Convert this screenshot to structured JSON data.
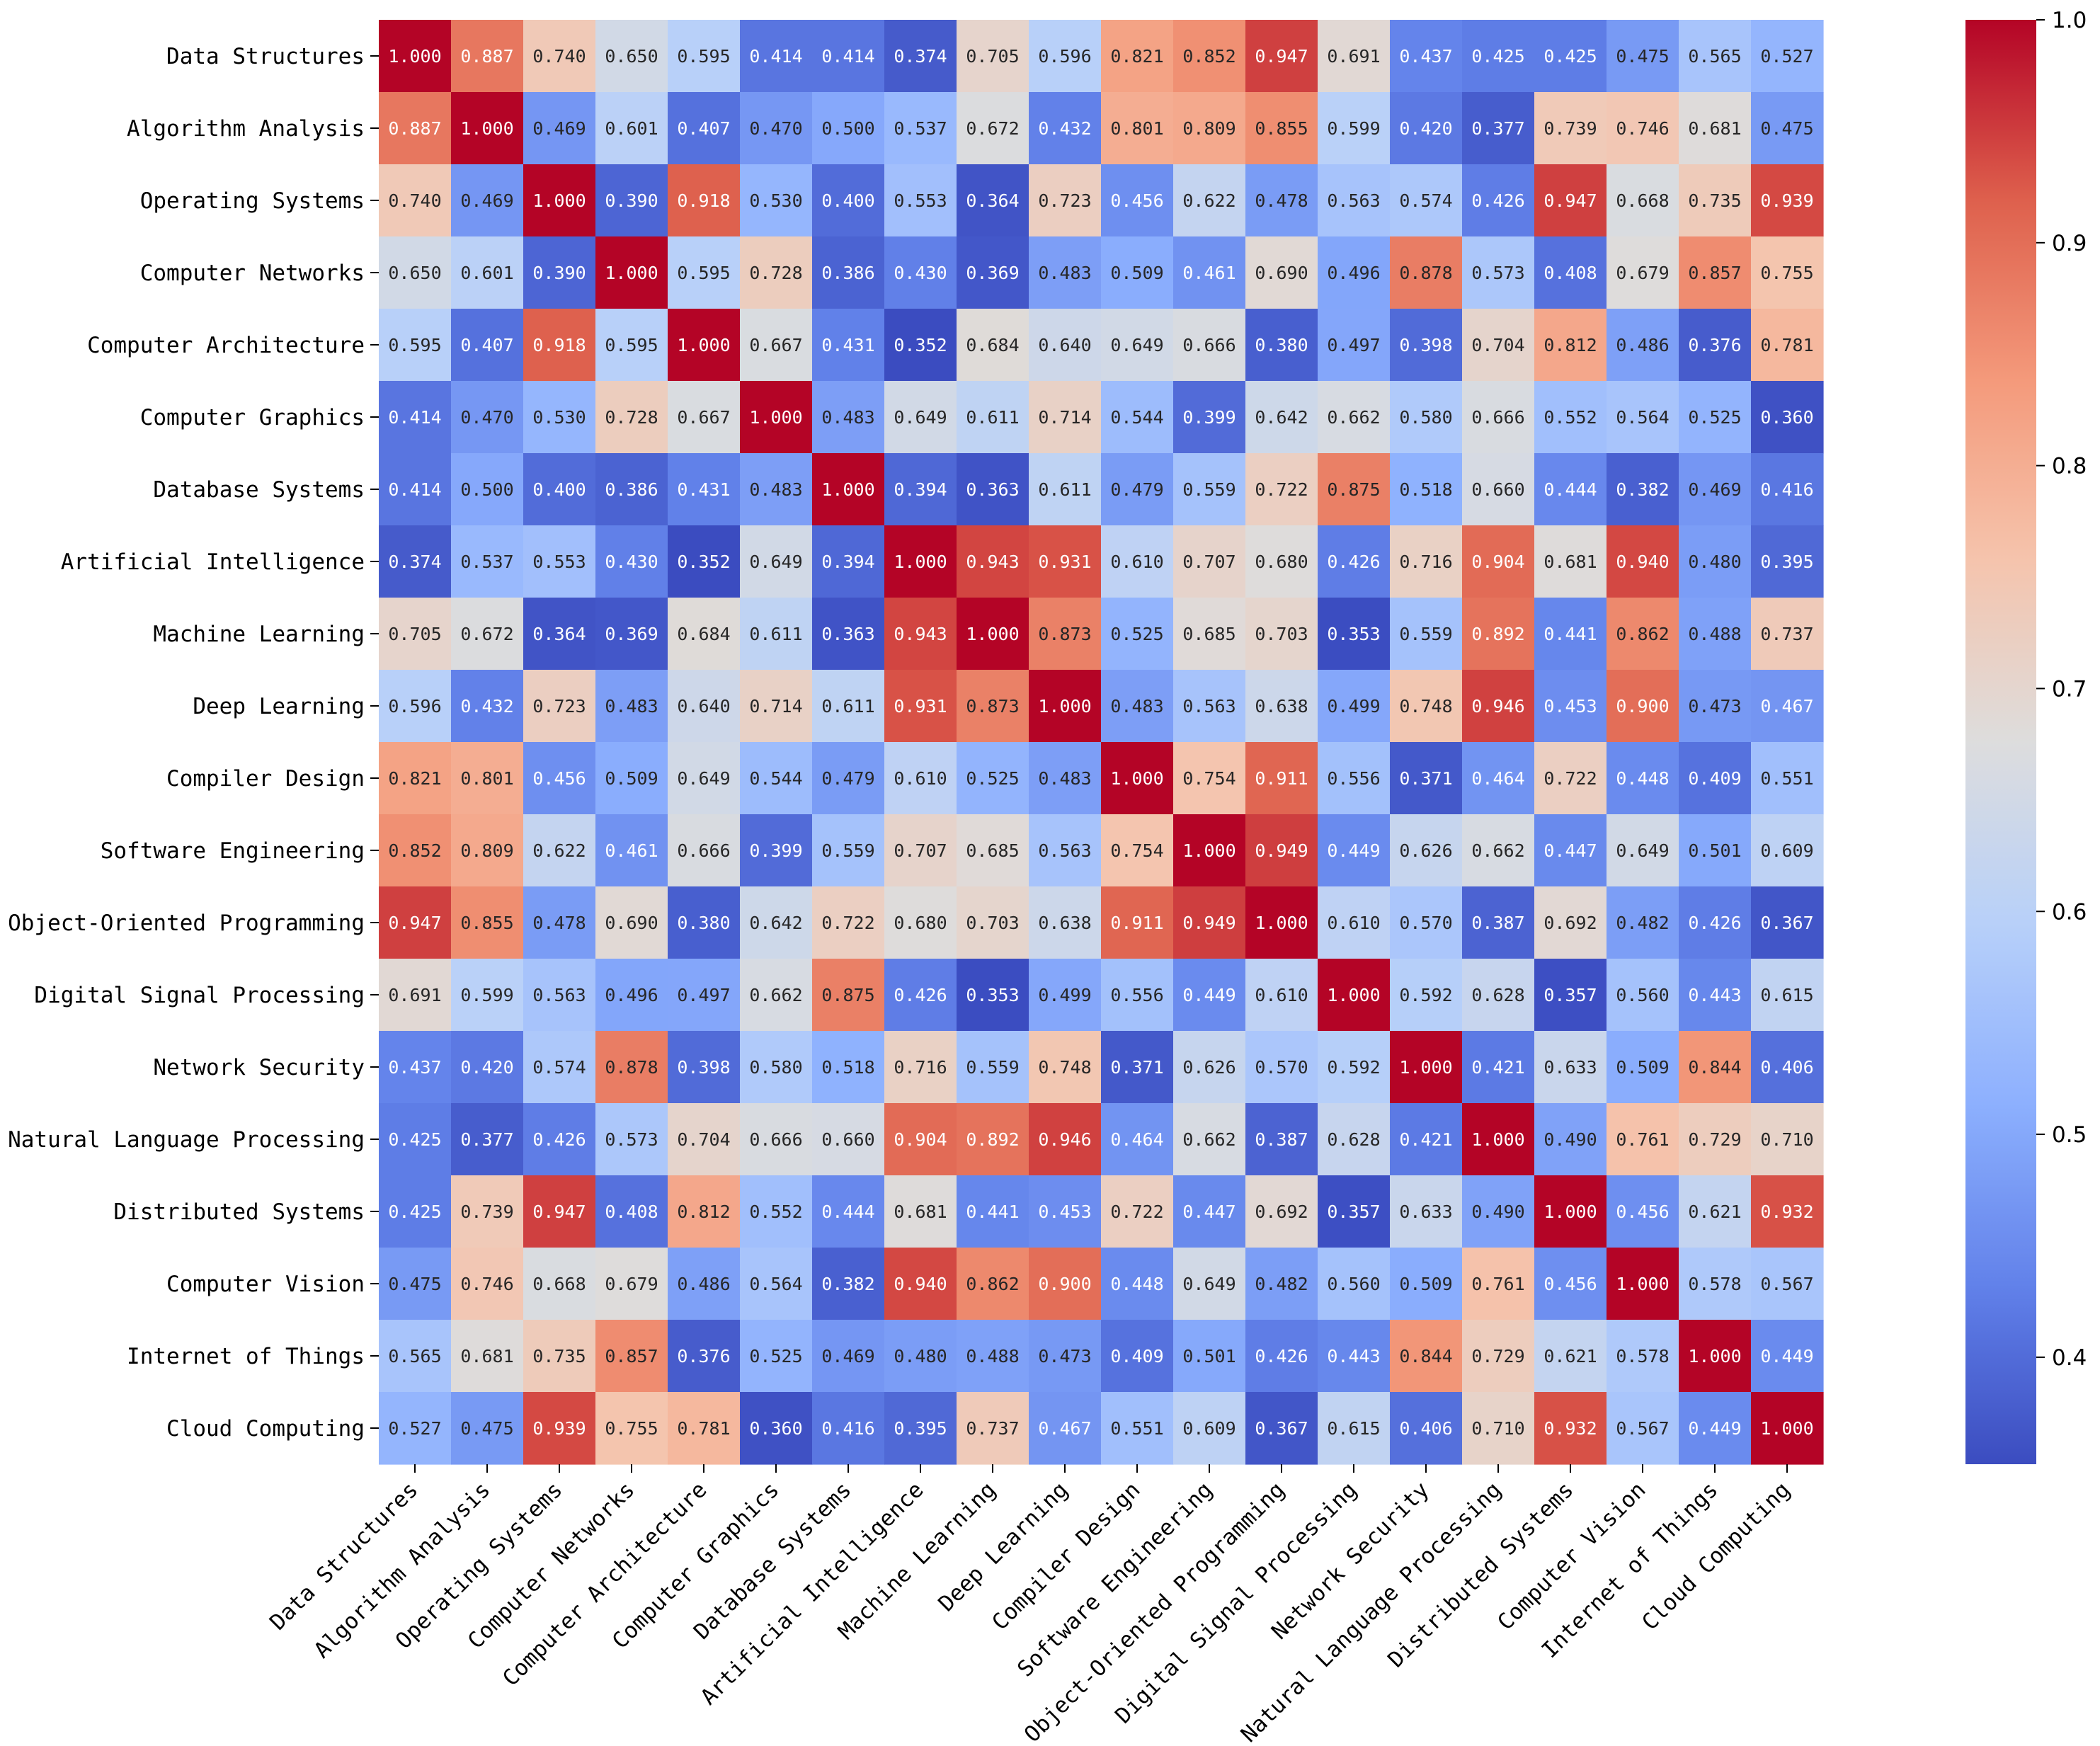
{
  "chart_data": {
    "type": "heatmap",
    "title": "",
    "xlabel": "",
    "ylabel": "",
    "colormap": "coolwarm",
    "value_format": "0.000",
    "vmin": 0.352,
    "vmax": 1.0,
    "labels": [
      "Data Structures",
      "Algorithm Analysis",
      "Operating Systems",
      "Computer Networks",
      "Computer Architecture",
      "Computer Graphics",
      "Database Systems",
      "Artificial Intelligence",
      "Machine Learning",
      "Deep Learning",
      "Compiler Design",
      "Software Engineering",
      "Object-Oriented Programming",
      "Digital Signal Processing",
      "Network Security",
      "Natural Language Processing",
      "Distributed Systems",
      "Computer Vision",
      "Internet of Things",
      "Cloud Computing"
    ],
    "matrix": [
      [
        1.0,
        0.887,
        0.74,
        0.65,
        0.595,
        0.414,
        0.414,
        0.374,
        0.705,
        0.596,
        0.821,
        0.852,
        0.947,
        0.691,
        0.437,
        0.425,
        0.425,
        0.475,
        0.565,
        0.527
      ],
      [
        0.887,
        1.0,
        0.469,
        0.601,
        0.407,
        0.47,
        0.5,
        0.537,
        0.672,
        0.432,
        0.801,
        0.809,
        0.855,
        0.599,
        0.42,
        0.377,
        0.739,
        0.746,
        0.681,
        0.475
      ],
      [
        0.74,
        0.469,
        1.0,
        0.39,
        0.918,
        0.53,
        0.4,
        0.553,
        0.364,
        0.723,
        0.456,
        0.622,
        0.478,
        0.563,
        0.574,
        0.426,
        0.947,
        0.668,
        0.735,
        0.939
      ],
      [
        0.65,
        0.601,
        0.39,
        1.0,
        0.595,
        0.728,
        0.386,
        0.43,
        0.369,
        0.483,
        0.509,
        0.461,
        0.69,
        0.496,
        0.878,
        0.573,
        0.408,
        0.679,
        0.857,
        0.755
      ],
      [
        0.595,
        0.407,
        0.918,
        0.595,
        1.0,
        0.667,
        0.431,
        0.352,
        0.684,
        0.64,
        0.649,
        0.666,
        0.38,
        0.497,
        0.398,
        0.704,
        0.812,
        0.486,
        0.376,
        0.781
      ],
      [
        0.414,
        0.47,
        0.53,
        0.728,
        0.667,
        1.0,
        0.483,
        0.649,
        0.611,
        0.714,
        0.544,
        0.399,
        0.642,
        0.662,
        0.58,
        0.666,
        0.552,
        0.564,
        0.525,
        0.36
      ],
      [
        0.414,
        0.5,
        0.4,
        0.386,
        0.431,
        0.483,
        1.0,
        0.394,
        0.363,
        0.611,
        0.479,
        0.559,
        0.722,
        0.875,
        0.518,
        0.66,
        0.444,
        0.382,
        0.469,
        0.416
      ],
      [
        0.374,
        0.537,
        0.553,
        0.43,
        0.352,
        0.649,
        0.394,
        1.0,
        0.943,
        0.931,
        0.61,
        0.707,
        0.68,
        0.426,
        0.716,
        0.904,
        0.681,
        0.94,
        0.48,
        0.395
      ],
      [
        0.705,
        0.672,
        0.364,
        0.369,
        0.684,
        0.611,
        0.363,
        0.943,
        1.0,
        0.873,
        0.525,
        0.685,
        0.703,
        0.353,
        0.559,
        0.892,
        0.441,
        0.862,
        0.488,
        0.737
      ],
      [
        0.596,
        0.432,
        0.723,
        0.483,
        0.64,
        0.714,
        0.611,
        0.931,
        0.873,
        1.0,
        0.483,
        0.563,
        0.638,
        0.499,
        0.748,
        0.946,
        0.453,
        0.9,
        0.473,
        0.467
      ],
      [
        0.821,
        0.801,
        0.456,
        0.509,
        0.649,
        0.544,
        0.479,
        0.61,
        0.525,
        0.483,
        1.0,
        0.754,
        0.911,
        0.556,
        0.371,
        0.464,
        0.722,
        0.448,
        0.409,
        0.551
      ],
      [
        0.852,
        0.809,
        0.622,
        0.461,
        0.666,
        0.399,
        0.559,
        0.707,
        0.685,
        0.563,
        0.754,
        1.0,
        0.949,
        0.449,
        0.626,
        0.662,
        0.447,
        0.649,
        0.501,
        0.609
      ],
      [
        0.947,
        0.855,
        0.478,
        0.69,
        0.38,
        0.642,
        0.722,
        0.68,
        0.703,
        0.638,
        0.911,
        0.949,
        1.0,
        0.61,
        0.57,
        0.387,
        0.692,
        0.482,
        0.426,
        0.367
      ],
      [
        0.691,
        0.599,
        0.563,
        0.496,
        0.497,
        0.662,
        0.875,
        0.426,
        0.353,
        0.499,
        0.556,
        0.449,
        0.61,
        1.0,
        0.592,
        0.628,
        0.357,
        0.56,
        0.443,
        0.615
      ],
      [
        0.437,
        0.42,
        0.574,
        0.878,
        0.398,
        0.58,
        0.518,
        0.716,
        0.559,
        0.748,
        0.371,
        0.626,
        0.57,
        0.592,
        1.0,
        0.421,
        0.633,
        0.509,
        0.844,
        0.406
      ],
      [
        0.425,
        0.377,
        0.426,
        0.573,
        0.704,
        0.666,
        0.66,
        0.904,
        0.892,
        0.946,
        0.464,
        0.662,
        0.387,
        0.628,
        0.421,
        1.0,
        0.49,
        0.761,
        0.729,
        0.71
      ],
      [
        0.425,
        0.739,
        0.947,
        0.408,
        0.812,
        0.552,
        0.444,
        0.681,
        0.441,
        0.453,
        0.722,
        0.447,
        0.692,
        0.357,
        0.633,
        0.49,
        1.0,
        0.456,
        0.621,
        0.932
      ],
      [
        0.475,
        0.746,
        0.668,
        0.679,
        0.486,
        0.564,
        0.382,
        0.94,
        0.862,
        0.9,
        0.448,
        0.649,
        0.482,
        0.56,
        0.509,
        0.761,
        0.456,
        1.0,
        0.578,
        0.567
      ],
      [
        0.565,
        0.681,
        0.735,
        0.857,
        0.376,
        0.525,
        0.469,
        0.48,
        0.488,
        0.473,
        0.409,
        0.501,
        0.426,
        0.443,
        0.844,
        0.729,
        0.621,
        0.578,
        1.0,
        0.449
      ],
      [
        0.527,
        0.475,
        0.939,
        0.755,
        0.781,
        0.36,
        0.416,
        0.395,
        0.737,
        0.467,
        0.551,
        0.609,
        0.367,
        0.615,
        0.406,
        0.71,
        0.932,
        0.567,
        0.449,
        1.0
      ]
    ],
    "colorbar": {
      "ticks": [
        0.4,
        0.5,
        0.6,
        0.7,
        0.8,
        0.9,
        1.0
      ],
      "tick_labels": [
        "0.4",
        "0.5",
        "0.6",
        "0.7",
        "0.8",
        "0.9",
        "1.0"
      ]
    }
  }
}
